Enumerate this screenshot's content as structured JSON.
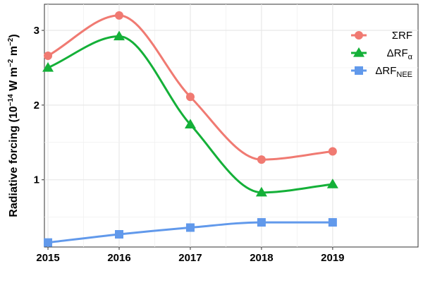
{
  "chart_data": {
    "type": "line",
    "title": "",
    "xlabel": "",
    "ylabel": "Radiative forcing (10",
    "ylabel_exp1": "−14",
    "ylabel_mid": " W m",
    "ylabel_exp2": "−2",
    "ylabel_mid2": " m",
    "ylabel_exp3": "−2",
    "ylabel_end": ")",
    "x": [
      2015,
      2016,
      2017,
      2018,
      2019
    ],
    "x_tick_labels": [
      "2015",
      "2016",
      "2017",
      "2018",
      "2019"
    ],
    "y_ticks": [
      1,
      2,
      3
    ],
    "y_tick_labels": [
      "1",
      "2",
      "3"
    ],
    "xlim": [
      2014.95,
      2020.2
    ],
    "ylim": [
      0.1,
      3.35
    ],
    "grid": true,
    "legend_position": "top-right",
    "series": [
      {
        "name": "ΣRF",
        "name_main": "ΣRF",
        "name_sub": "",
        "values": [
          2.66,
          3.2,
          2.11,
          1.27,
          1.38
        ],
        "color": "#F07A72",
        "marker": "circle"
      },
      {
        "name": "ΔRFα",
        "name_main": "ΔRF",
        "name_sub": "α",
        "values": [
          2.5,
          2.92,
          1.74,
          0.83,
          0.94
        ],
        "color": "#14B038",
        "marker": "triangle"
      },
      {
        "name": "ΔRFNEE",
        "name_main": "ΔRF",
        "name_sub": "NEE",
        "values": [
          0.16,
          0.27,
          0.36,
          0.43,
          0.43
        ],
        "color": "#6199EB",
        "marker": "square"
      }
    ]
  }
}
